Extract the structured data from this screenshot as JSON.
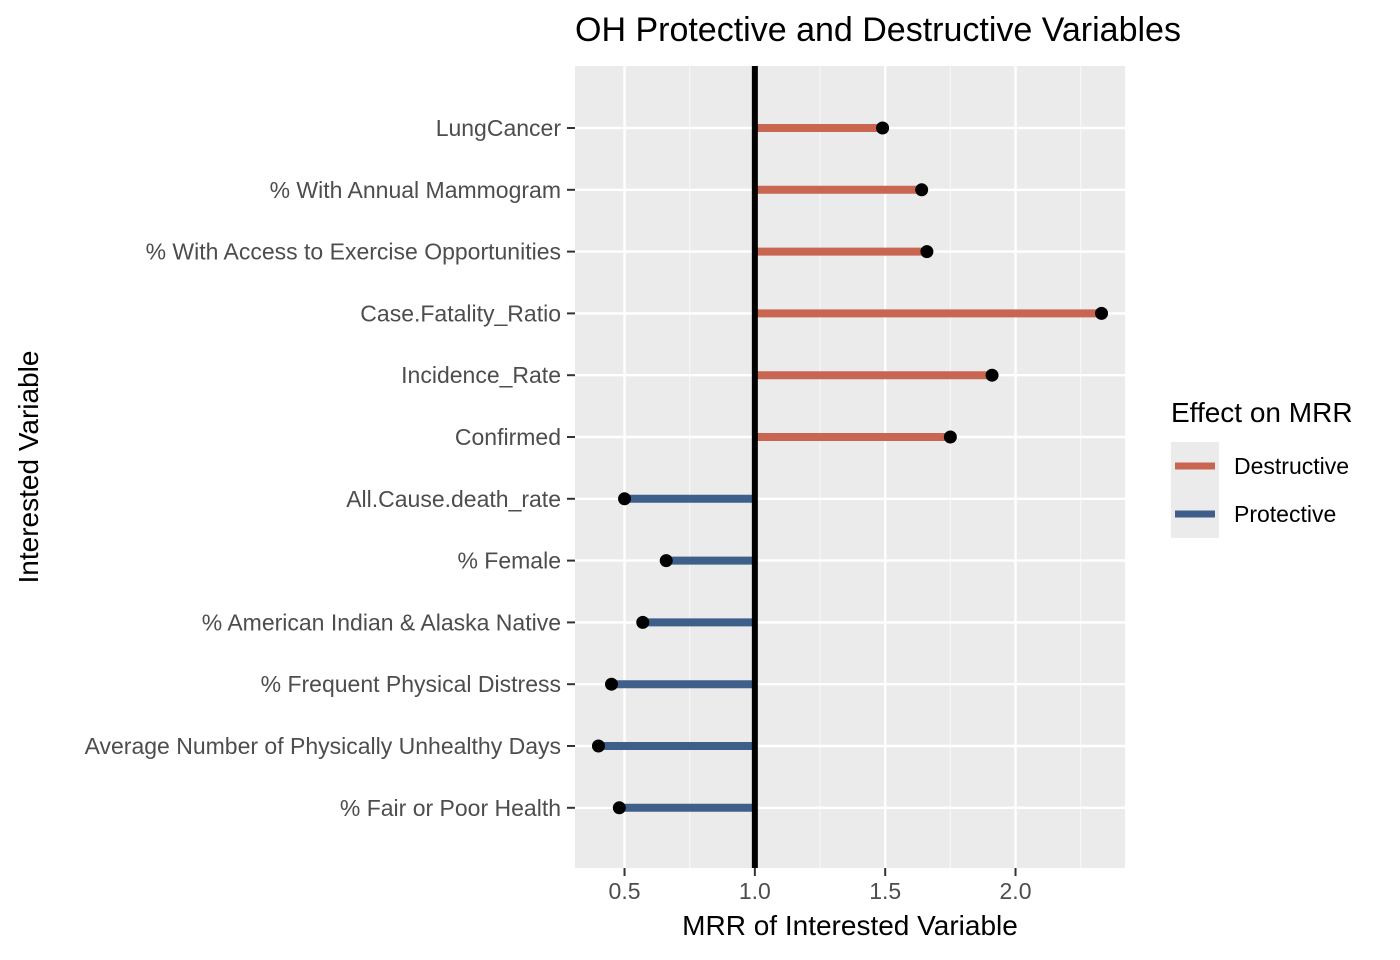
{
  "chart_data": {
    "type": "lollipop",
    "title": "OH Protective and Destructive Variables",
    "xlabel": "MRR of Interested Variable",
    "ylabel": "Interested Variable",
    "xlim": [
      0.31,
      2.42
    ],
    "xticks": [
      0.5,
      1.0,
      1.5,
      2.0
    ],
    "xtick_labels": [
      "0.5",
      "1.0",
      "1.5",
      "2.0"
    ],
    "reference_x": 1.0,
    "grid": true,
    "legend": {
      "title": "Effect on MRR",
      "position": "right",
      "entries": [
        {
          "label": "Destructive",
          "color": "#c86652"
        },
        {
          "label": "Protective",
          "color": "#3e5f8a"
        }
      ]
    },
    "categories": [
      "LungCancer",
      "% With Annual Mammogram",
      "% With Access to Exercise Opportunities",
      "Case.Fatality_Ratio",
      "Incidence_Rate",
      "Confirmed",
      "All.Cause.death_rate",
      "% Female",
      "% American Indian & Alaska Native",
      "% Frequent Physical Distress",
      "Average Number of Physically Unhealthy Days",
      "% Fair or Poor Health"
    ],
    "values": [
      1.49,
      1.64,
      1.66,
      2.33,
      1.91,
      1.75,
      0.5,
      0.66,
      0.57,
      0.45,
      0.4,
      0.48
    ],
    "effects": [
      "Destructive",
      "Destructive",
      "Destructive",
      "Destructive",
      "Destructive",
      "Destructive",
      "Protective",
      "Protective",
      "Protective",
      "Protective",
      "Protective",
      "Protective"
    ]
  }
}
